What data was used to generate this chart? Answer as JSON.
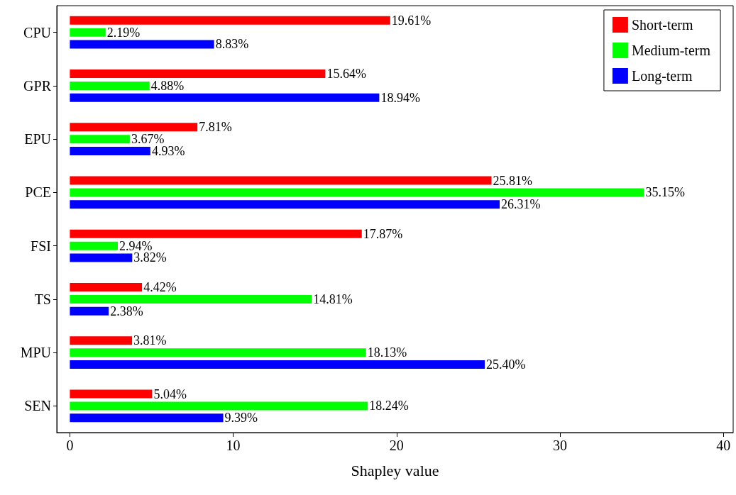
{
  "chart_data": {
    "type": "bar",
    "orientation": "horizontal",
    "xlabel": "Shapley value",
    "categories": [
      "CPU",
      "GPR",
      "EPU",
      "PCE",
      "FSI",
      "TS",
      "MPU",
      "SEN"
    ],
    "series": [
      {
        "name": "Short-term",
        "color": "#ff0000",
        "values": [
          19.61,
          15.64,
          7.81,
          25.81,
          17.87,
          4.42,
          3.81,
          5.04
        ],
        "value_labels": [
          "19.61%",
          "15.64%",
          "7.81%",
          "25.81%",
          "17.87%",
          "4.42%",
          "3.81%",
          "5.04%"
        ]
      },
      {
        "name": "Medium-term",
        "color": "#00ff00",
        "values": [
          2.19,
          4.88,
          3.67,
          35.15,
          2.94,
          14.81,
          18.13,
          18.24
        ],
        "value_labels": [
          "2.19%",
          "4.88%",
          "3.67%",
          "35.15%",
          "2.94%",
          "14.81%",
          "18.13%",
          "18.24%"
        ]
      },
      {
        "name": "Long-term",
        "color": "#0000ff",
        "values": [
          8.83,
          18.94,
          4.93,
          26.31,
          3.82,
          2.38,
          25.4,
          9.39
        ],
        "value_labels": [
          "8.83%",
          "18.94%",
          "4.93%",
          "26.31%",
          "3.82%",
          "2.38%",
          "25.40%",
          "9.39%"
        ]
      }
    ],
    "xlim": [
      -0.8,
      40.6
    ],
    "xticks": [
      0,
      10,
      20,
      30,
      40
    ],
    "grid": false,
    "legend": "top right"
  }
}
